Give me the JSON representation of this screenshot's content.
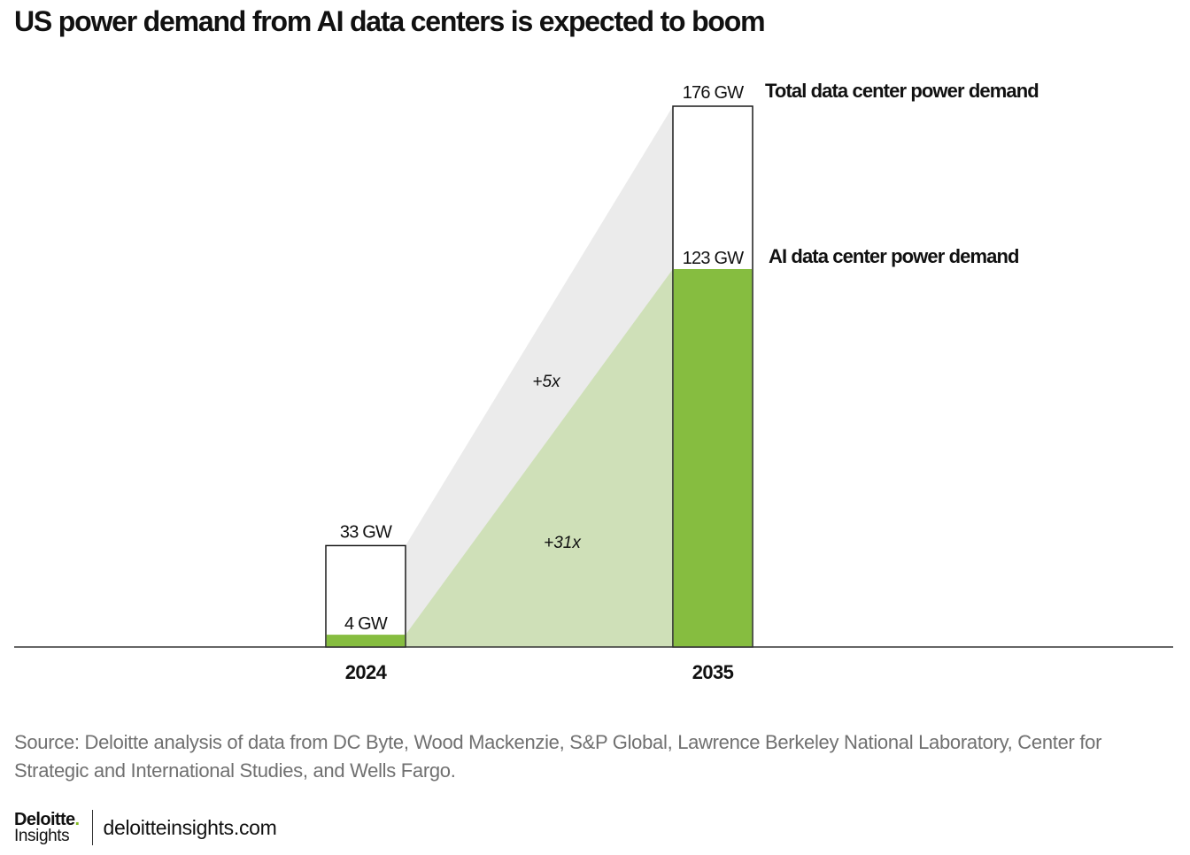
{
  "header": {
    "title": "US power demand from AI data centers is expected to boom"
  },
  "chart_data": {
    "type": "bar",
    "title": "US power demand from AI data centers is expected to boom",
    "categories": [
      "2024",
      "2035"
    ],
    "unit": "GW",
    "series": [
      {
        "name": "Total data center power demand",
        "values": [
          33,
          176
        ],
        "labels": [
          "33 GW",
          "176 GW"
        ],
        "color": "#ffffff"
      },
      {
        "name": "AI data center power demand",
        "values": [
          4,
          123
        ],
        "labels": [
          "4 GW",
          "123 GW"
        ],
        "color": "#86bd40"
      }
    ],
    "growth_annotations": [
      {
        "series": "Total data center power demand",
        "label": "+5x",
        "color": "#ebebeb"
      },
      {
        "series": "AI data center power demand",
        "label": "+31x",
        "color": "#cfe0b8"
      }
    ],
    "ylim": [
      0,
      176
    ],
    "xlabel": "",
    "ylabel": "",
    "grid": false,
    "legend": "right of 2035 bar"
  },
  "source": "Source: Deloitte analysis of data from DC Byte, Wood Mackenzie, S&P Global, Lawrence Berkeley National Laboratory, Center for Strategic and International Studies, and Wells Fargo.",
  "footer": {
    "logo_brand": "Deloitte",
    "logo_dot": ".",
    "logo_sub": "Insights",
    "site": "deloitteinsights.com"
  },
  "colors": {
    "ai_green": "#86bd40",
    "total_fill": "#ebebeb",
    "ai_fill": "#cfe0b8",
    "source_text": "#707070"
  }
}
